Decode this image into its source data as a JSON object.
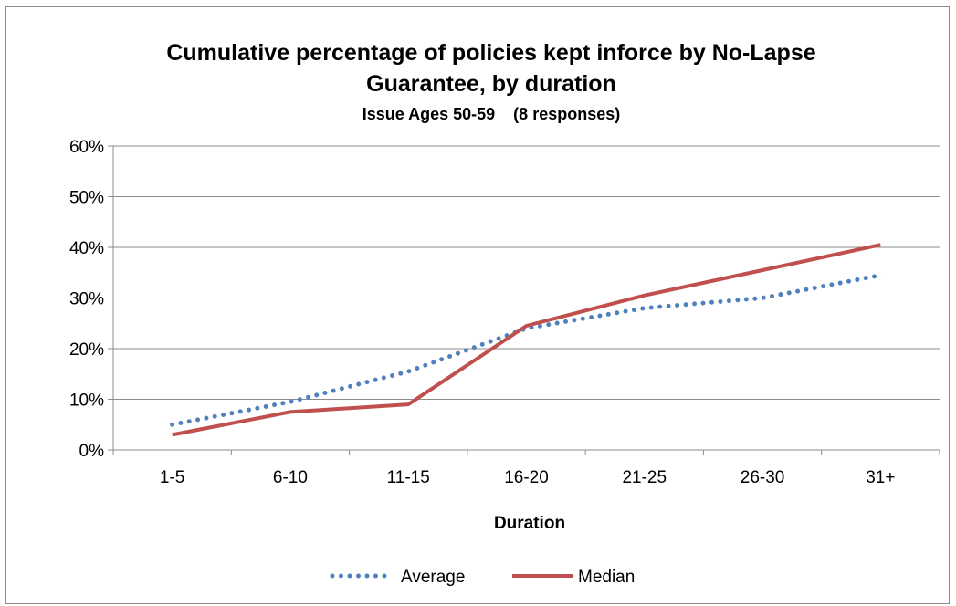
{
  "chart_data": {
    "type": "line",
    "title_line1": "Cumulative percentage of policies kept inforce by No-Lapse",
    "title_line2": "Guarantee, by duration",
    "subtitle": "Issue Ages 50-59    (8 responses)",
    "xlabel": "Duration",
    "ylabel": "",
    "categories": [
      "1-5",
      "6-10",
      "11-15",
      "16-20",
      "21-25",
      "26-30",
      "31+"
    ],
    "y_ticks": [
      "0%",
      "10%",
      "20%",
      "30%",
      "40%",
      "50%",
      "60%"
    ],
    "ylim": [
      0,
      60
    ],
    "grid": true,
    "legend_position": "bottom",
    "series": [
      {
        "name": "Average",
        "style": "dotted",
        "color": "#4F81BD",
        "values": [
          5,
          9.5,
          15.5,
          24,
          28,
          30,
          34.5
        ]
      },
      {
        "name": "Median",
        "style": "solid",
        "color": "#C0504D",
        "values": [
          3,
          7.5,
          9,
          24.5,
          30.5,
          35.5,
          40.5
        ]
      }
    ]
  }
}
